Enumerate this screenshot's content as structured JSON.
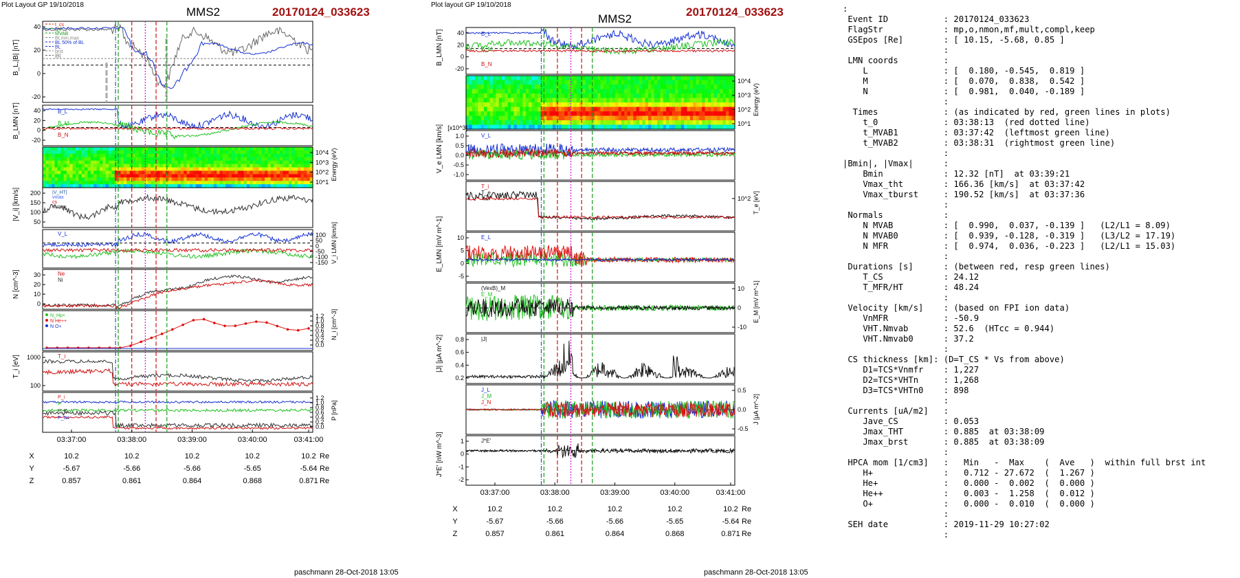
{
  "left_page": {
    "header": "Plot Layout GP 19/10/2018",
    "spacecraft": "MMS2",
    "event": "20170124_033623",
    "credit": "paschmann 28-Oct-2018 13:05"
  },
  "right_page": {
    "header": "Plot layout GP 19/10/2018",
    "spacecraft": "MMS2",
    "event": "20170124_033623",
    "credit": "paschmann 28-Oct-2018 13:05"
  },
  "time_ticks": [
    "03:37:00",
    "03:38:00",
    "03:39:00",
    "03:40:00",
    "03:41:00"
  ],
  "positions": {
    "X": [
      "10.2",
      "10.2",
      "10.2",
      "10.2",
      "10.2"
    ],
    "Y": [
      "-5.67",
      "-5.66",
      "-5.66",
      "-5.65",
      "-5.64"
    ],
    "Z": [
      "0.857",
      "0.861",
      "0.864",
      "0.868",
      "0.871"
    ],
    "unit": "Re"
  },
  "chart_data": [
    {
      "type": "line",
      "name": "left-BL-panel",
      "ylabel": "B_L,|B| [nT]",
      "yticks": [
        "40",
        "20",
        "0",
        "-20"
      ],
      "legend": [
        "t_cs",
        "t_d",
        "MVAB",
        "BLmin,max",
        "BL 50% of BL",
        "BL",
        "brst",
        "|B|"
      ]
    },
    {
      "type": "line",
      "name": "left-BLMN-panel",
      "ylabel": "B_LMN [nT]",
      "yticks": [
        "40",
        "20",
        "0",
        "-20"
      ],
      "labels": [
        "B_L",
        "B_M",
        "B_N"
      ]
    },
    {
      "type": "heatmap",
      "name": "left-ion-spectrogram",
      "ylabel": "Energy (eV)",
      "yticks": [
        "10^4",
        "10^3",
        "10^2",
        "10^1"
      ]
    },
    {
      "type": "line",
      "name": "left-Vi-panel",
      "ylabel": "|V_i| [km/s]",
      "yticks": [
        "200",
        "150",
        "100",
        "50"
      ],
      "legend": [
        "|V_HT|",
        "vmax",
        "cs",
        "dvmax"
      ]
    },
    {
      "type": "line",
      "name": "left-ViLMN-panel",
      "ylabel": "V_i LMN [km/s]",
      "yticks": [
        "100",
        "50",
        "0",
        "-50",
        "-100",
        "-150"
      ],
      "labels": [
        "V_L"
      ]
    },
    {
      "type": "line",
      "name": "left-density-panel",
      "ylabel": "N [cm^-3]",
      "yticks": [
        "30",
        "20",
        "10",
        "0"
      ],
      "labels": [
        "Ne",
        "Ni"
      ]
    },
    {
      "type": "line",
      "name": "left-hpca-panel",
      "ylabel": "N_i [cm^-3]",
      "yticks": [
        "1.2",
        "1.0",
        "0.8",
        "0.6",
        "0.4",
        "0.2",
        "0.0"
      ],
      "legend": [
        "N_Hp+",
        "N He++",
        "N O+"
      ]
    },
    {
      "type": "line",
      "name": "left-Ti-panel",
      "ylabel": "T_i [eV]",
      "yticks": [
        "1000",
        "100"
      ],
      "labels": [
        "T_i"
      ]
    },
    {
      "type": "line",
      "name": "left-P-panel",
      "ylabel": "P [nPa]",
      "yticks": [
        "1.2",
        "1.0",
        "0.8",
        "0.6",
        "0.4",
        "0.2",
        "0.0"
      ],
      "labels": [
        "P_i",
        "P",
        "P_B",
        "P_tot"
      ]
    },
    {
      "type": "line",
      "name": "right-BLMN-panel",
      "ylabel": "B_LMN [nT]",
      "yticks": [
        "40",
        "20",
        "0",
        "-20"
      ],
      "labels": [
        "B_L",
        "B_M",
        "B_N"
      ]
    },
    {
      "type": "heatmap",
      "name": "right-electron-spectrogram",
      "ylabel": "Energy (eV)",
      "yticks": [
        "10^4",
        "10^3",
        "10^2",
        "10^1"
      ]
    },
    {
      "type": "line",
      "name": "right-Ve-panel",
      "ylabel": "V_e LMN [km/s]",
      "yticks": [
        "1.0",
        "0.5",
        "0.0",
        "-0.5",
        "-1.0"
      ],
      "ymultiplier": "[x10^3]",
      "labels": [
        "V_L"
      ]
    },
    {
      "type": "line",
      "name": "right-Te-panel",
      "ylabel": "T_e [eV]",
      "yticks": [
        "10^2"
      ],
      "labels": [
        "T_i",
        "T_e"
      ]
    },
    {
      "type": "line",
      "name": "right-E-panel",
      "ylabel": "E_LMN [mV m^-1]",
      "yticks": [
        "10",
        "5",
        "0",
        "-5"
      ],
      "labels": [
        "E_L"
      ]
    },
    {
      "type": "line",
      "name": "right-EM-panel",
      "ylabel": "E_M [mV m^-1]",
      "yticks": [
        "10",
        "0",
        "-10"
      ],
      "labels": [
        "(VexB)_M",
        "E_M"
      ]
    },
    {
      "type": "line",
      "name": "right-J-panel",
      "ylabel": "|J| [µA m^-2]",
      "yticks": [
        "0.8",
        "0.6",
        "0.4",
        "0.2"
      ],
      "labels": [
        "|J|"
      ]
    },
    {
      "type": "line",
      "name": "right-JLMN-panel",
      "ylabel": "J [µA m^-2]",
      "yticks": [
        "0.5",
        "0.0",
        "-0.5"
      ],
      "labels": [
        "J_L",
        "J_M",
        "J_N"
      ]
    },
    {
      "type": "line",
      "name": "right-JE-panel",
      "ylabel": "J*E' [nW m^-3]",
      "yticks": [
        "1",
        "0",
        "-1",
        "-2"
      ],
      "labels": [
        "J*E'"
      ]
    }
  ],
  "info_lines": [
    ":",
    " Event ID           : 20170124_033623",
    " FlagStr            : mp,o,nmon,mf,mult,compl,keep",
    " GSEpos [Re]        : [ 10.15, -5.68, 0.85 ]",
    "                    :",
    " LMN coords         :",
    "    L               : [  0.180, -0.545,  0.819 ]",
    "    M               : [  0.070,  0.838,  0.542 ]",
    "    N               : [  0.981,  0.040, -0.189 ]",
    "                    :",
    "  Times             : (as indicated by red, green lines in plots)",
    "    t_0             : 03:38:13  (red dotted line)",
    "    t_MVAB1         : 03:37:42  (leftmost green line)",
    "    t_MVAB2         : 03:38:31  (rightmost green line)",
    "                    :",
    "|Bmin|, |Vmax|      :",
    "    Bmin            : 12.32 [nT]  at 03:39:21",
    "    Vmax_tht        : 166.36 [km/s]  at 03:37:42",
    "    Vmax_tburst     : 190.52 [km/s]  at 03:37:36",
    "                    :",
    " Normals            :",
    "    N MVAB          : [  0.990,  0.037, -0.139 ]   (L2/L1 = 8.09)",
    "    N MVAB0         : [  0.939, -0.128, -0.319 ]   (L3/L2 = 17.19)",
    "    N MFR           : [  0.974,  0.036, -0.223 ]   (L2/L1 = 15.03)",
    "                    :",
    " Durations [s]      : (between red, resp green lines)",
    "    T_CS            : 24.12",
    "    T_MFR/HT        : 48.24",
    "                    :",
    " Velocity [km/s]    : (based on FPI ion data)",
    "    VnMFR           : -50.9",
    "    VHT.Nmvab       : 52.6  (HTcc = 0.944)",
    "    VHT.Nmvab0      : 37.2",
    "                    :",
    " CS thickness [km]: (D=T_CS * Vs from above)",
    "    D1=TCS*Vnmfr    : 1,227",
    "    D2=TCS*VHTn     : 1,268",
    "    D3=TCS*VHTn0    : 898",
    "                    :",
    " Currents [uA/m2]   :",
    "    Jave_CS         : 0.053",
    "    Jmax_THT        : 0.885  at 03:38:09",
    "    Jmax_brst       : 0.885  at 03:38:09",
    "                    :",
    " HPCA mom [1/cm3]   :   Min   -  Max    (  Ave   )  within full brst int",
    "    H+              :   0.712 - 27.672  (  1.267 )",
    "    He+             :   0.000 -  0.002  (  0.000 )",
    "    He++            :   0.003 -  1.258  (  0.012 )",
    "    O+              :   0.000 -  0.010  (  0.000 )",
    "                    :",
    " SEH date           : 2019-11-29 10:27:02",
    "                    :"
  ]
}
